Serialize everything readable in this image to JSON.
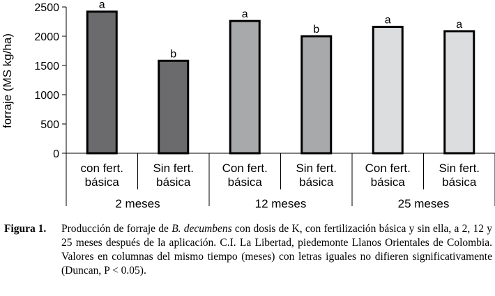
{
  "chart_data": {
    "type": "bar",
    "ylabel": "forraje (MS kg/ha)",
    "ylim": [
      0,
      2500
    ],
    "yticks": [
      "0",
      "500",
      "1000",
      "1500",
      "2000",
      "2500"
    ],
    "categories": [
      [
        "con fert.",
        "básica"
      ],
      [
        "Sin fert.",
        "básica"
      ],
      [
        "Con fert.",
        "básica"
      ],
      [
        "Sin fert.",
        "básica"
      ],
      [
        "Con fert.",
        "básica"
      ],
      [
        "Sin fert.",
        "básica"
      ]
    ],
    "groups": [
      "2 meses",
      "12 meses",
      "25 meses"
    ],
    "values": [
      2420,
      1580,
      2260,
      2000,
      2160,
      2085
    ],
    "significance": [
      "a",
      "b",
      "a",
      "b",
      "a",
      "a"
    ],
    "colors": [
      "#6b6b6d",
      "#6b6b6d",
      "#a8a9ab",
      "#a8a9ab",
      "#dcdddf",
      "#dcdddf"
    ]
  },
  "caption": {
    "label": "Figura 1.",
    "before": "Producción de forraje de ",
    "species": "B. decumbens",
    "after": " con dosis de K, con fertilización básica y sin ella, a 2, 12 y 25 meses después de la aplicación. C.I. La Libertad, piedemonte Llanos Orientales de Colombia. Valores en columnas del mismo tiempo (meses) con letras iguales no difieren significativamente (Duncan, P < 0.05)."
  }
}
